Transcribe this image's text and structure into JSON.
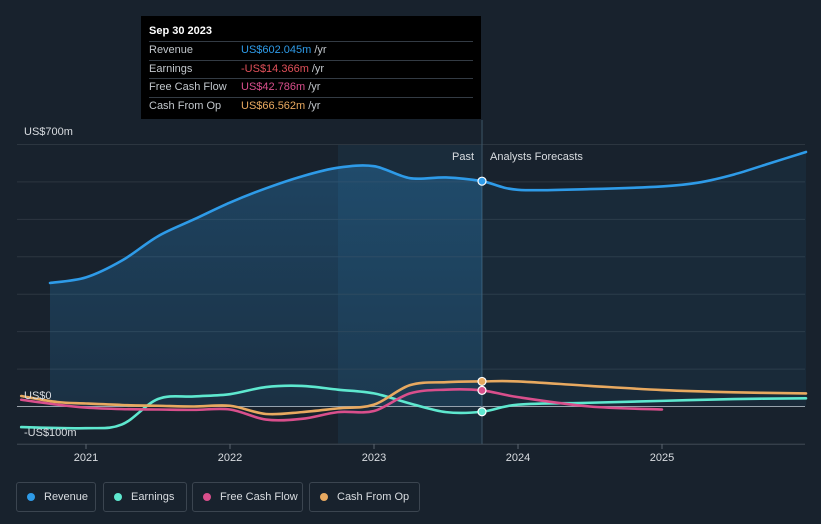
{
  "tooltip": {
    "date": "Sep 30 2023",
    "rows": [
      {
        "label": "Revenue",
        "value": "US$602.045m",
        "unit": "/yr",
        "color": "#2e9be8"
      },
      {
        "label": "Earnings",
        "value": "-US$14.366m",
        "unit": "/yr",
        "color": "#e0505a"
      },
      {
        "label": "Free Cash Flow",
        "value": "US$42.786m",
        "unit": "/yr",
        "color": "#d94f8c"
      },
      {
        "label": "Cash From Op",
        "value": "US$66.562m",
        "unit": "/yr",
        "color": "#e8a960"
      }
    ]
  },
  "labels": {
    "past": "Past",
    "forecast": "Analysts Forecasts"
  },
  "legend": [
    {
      "label": "Revenue",
      "color": "#2e9be8"
    },
    {
      "label": "Earnings",
      "color": "#5ee8cf"
    },
    {
      "label": "Free Cash Flow",
      "color": "#d94f8c"
    },
    {
      "label": "Cash From Op",
      "color": "#e8a960"
    }
  ],
  "chart_data": {
    "type": "line",
    "y_tick_labels": [
      "US$700m",
      "US$0",
      "-US$100m"
    ],
    "x_tick_labels": [
      "2021",
      "2022",
      "2023",
      "2024",
      "2025"
    ],
    "ylim": [
      -100,
      700
    ],
    "xlim": [
      2020.55,
      2026.0
    ],
    "divider_x": 2023.75,
    "highlight_range": [
      2022.75,
      2023.75
    ],
    "series": [
      {
        "name": "Revenue",
        "color": "#2e9be8",
        "area": true,
        "points": [
          [
            2020.75,
            330
          ],
          [
            2021.0,
            345
          ],
          [
            2021.25,
            390
          ],
          [
            2021.5,
            455
          ],
          [
            2021.75,
            500
          ],
          [
            2022.0,
            545
          ],
          [
            2022.25,
            583
          ],
          [
            2022.5,
            615
          ],
          [
            2022.75,
            638
          ],
          [
            2023.0,
            642
          ],
          [
            2023.25,
            610
          ],
          [
            2023.5,
            612
          ],
          [
            2023.75,
            602
          ],
          [
            2024.0,
            579
          ],
          [
            2024.5,
            581
          ],
          [
            2025.0,
            588
          ],
          [
            2025.25,
            598
          ],
          [
            2025.5,
            620
          ],
          [
            2025.75,
            650
          ],
          [
            2026.0,
            680
          ]
        ]
      },
      {
        "name": "Earnings",
        "color": "#5ee8cf",
        "area": false,
        "points": [
          [
            2020.55,
            -55
          ],
          [
            2021.0,
            -58
          ],
          [
            2021.25,
            -48
          ],
          [
            2021.5,
            20
          ],
          [
            2021.75,
            27
          ],
          [
            2022.0,
            33
          ],
          [
            2022.25,
            52
          ],
          [
            2022.5,
            55
          ],
          [
            2022.75,
            45
          ],
          [
            2023.0,
            35
          ],
          [
            2023.25,
            8
          ],
          [
            2023.5,
            -15
          ],
          [
            2023.75,
            -14
          ],
          [
            2024.0,
            5
          ],
          [
            2024.5,
            10
          ],
          [
            2025.0,
            15
          ],
          [
            2025.5,
            20
          ],
          [
            2026.0,
            22
          ]
        ]
      },
      {
        "name": "Free Cash Flow",
        "color": "#d94f8c",
        "area": false,
        "points": [
          [
            2020.55,
            18
          ],
          [
            2020.8,
            5
          ],
          [
            2021.0,
            -3
          ],
          [
            2021.25,
            -7
          ],
          [
            2021.5,
            -8
          ],
          [
            2021.75,
            -9
          ],
          [
            2022.0,
            -8
          ],
          [
            2022.25,
            -35
          ],
          [
            2022.5,
            -33
          ],
          [
            2022.75,
            -15
          ],
          [
            2023.0,
            -12
          ],
          [
            2023.25,
            35
          ],
          [
            2023.5,
            45
          ],
          [
            2023.75,
            43
          ],
          [
            2024.0,
            25
          ],
          [
            2024.5,
            0
          ],
          [
            2025.0,
            -8
          ]
        ]
      },
      {
        "name": "Cash From Op",
        "color": "#e8a960",
        "area": false,
        "points": [
          [
            2020.55,
            28
          ],
          [
            2020.8,
            12
          ],
          [
            2021.0,
            8
          ],
          [
            2021.25,
            4
          ],
          [
            2021.5,
            2
          ],
          [
            2021.75,
            0
          ],
          [
            2022.0,
            2
          ],
          [
            2022.25,
            -20
          ],
          [
            2022.5,
            -15
          ],
          [
            2022.75,
            -5
          ],
          [
            2023.0,
            5
          ],
          [
            2023.25,
            57
          ],
          [
            2023.5,
            65
          ],
          [
            2023.75,
            67
          ],
          [
            2024.0,
            67
          ],
          [
            2024.5,
            55
          ],
          [
            2025.0,
            44
          ],
          [
            2025.5,
            38
          ],
          [
            2026.0,
            35
          ]
        ]
      }
    ]
  }
}
